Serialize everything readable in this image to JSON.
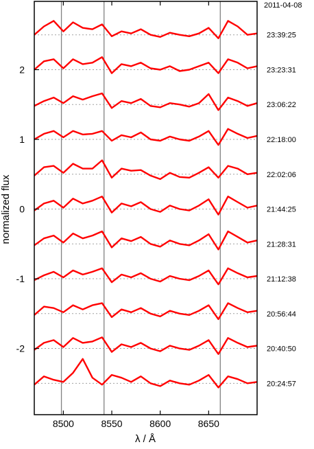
{
  "chart_data": {
    "type": "line",
    "title": "",
    "date_label": "2011-04-08",
    "xlabel": "λ / Å",
    "ylabel": "normalized flux",
    "xlim": [
      8470,
      8700
    ],
    "ylim": [
      -2.95,
      2.98
    ],
    "x_ticks": [
      8500,
      8550,
      8600,
      8650
    ],
    "y_ticks": [
      2,
      1,
      0,
      -1,
      -2
    ],
    "reference_lines_x": [
      8498,
      8542,
      8662
    ],
    "grid": false,
    "series_color": "#ff0000",
    "reference_line_color": "#808080",
    "baseline_color": "#a0a0a0",
    "series": [
      {
        "time": "23:39:25",
        "baseline": 2.5,
        "x": [
          8470,
          8480,
          8490,
          8500,
          8510,
          8520,
          8530,
          8540,
          8550,
          8560,
          8570,
          8580,
          8590,
          8600,
          8610,
          8620,
          8630,
          8640,
          8650,
          8660,
          8670,
          8680,
          8690,
          8700
        ],
        "y": [
          2.5,
          2.62,
          2.7,
          2.55,
          2.68,
          2.6,
          2.58,
          2.65,
          2.48,
          2.55,
          2.52,
          2.58,
          2.5,
          2.47,
          2.53,
          2.5,
          2.48,
          2.52,
          2.6,
          2.45,
          2.7,
          2.62,
          2.5,
          2.52
        ]
      },
      {
        "time": "23:23:31",
        "baseline": 2.0,
        "x": [
          8470,
          8480,
          8490,
          8500,
          8510,
          8520,
          8530,
          8540,
          8550,
          8560,
          8570,
          8580,
          8590,
          8600,
          8610,
          8620,
          8630,
          8640,
          8650,
          8660,
          8670,
          8680,
          8690,
          8700
        ],
        "y": [
          2.0,
          2.12,
          2.15,
          2.02,
          2.15,
          2.08,
          2.1,
          2.18,
          1.95,
          2.08,
          2.05,
          2.1,
          2.02,
          2.0,
          2.05,
          1.98,
          2.0,
          2.05,
          2.1,
          1.95,
          2.15,
          2.1,
          2.02,
          2.05
        ]
      },
      {
        "time": "23:06:22",
        "baseline": 1.5,
        "x": [
          8470,
          8480,
          8490,
          8500,
          8510,
          8520,
          8530,
          8540,
          8550,
          8560,
          8570,
          8580,
          8590,
          8600,
          8610,
          8620,
          8630,
          8640,
          8650,
          8660,
          8670,
          8680,
          8690,
          8700
        ],
        "y": [
          1.48,
          1.55,
          1.6,
          1.52,
          1.62,
          1.57,
          1.62,
          1.66,
          1.45,
          1.55,
          1.52,
          1.58,
          1.48,
          1.46,
          1.52,
          1.5,
          1.47,
          1.52,
          1.65,
          1.42,
          1.6,
          1.55,
          1.48,
          1.52
        ]
      },
      {
        "time": "22:18:00",
        "baseline": 1.0,
        "x": [
          8470,
          8480,
          8490,
          8500,
          8510,
          8520,
          8530,
          8540,
          8550,
          8560,
          8570,
          8580,
          8590,
          8600,
          8610,
          8620,
          8630,
          8640,
          8650,
          8660,
          8670,
          8680,
          8690,
          8700
        ],
        "y": [
          1.0,
          1.08,
          1.12,
          1.03,
          1.12,
          1.07,
          1.08,
          1.12,
          0.98,
          1.06,
          1.03,
          1.1,
          1.0,
          0.98,
          1.04,
          1.0,
          0.98,
          1.04,
          1.12,
          0.92,
          1.15,
          1.08,
          1.02,
          1.05
        ]
      },
      {
        "time": "22:02:06",
        "baseline": 0.5,
        "x": [
          8470,
          8480,
          8490,
          8500,
          8510,
          8520,
          8530,
          8540,
          8550,
          8560,
          8570,
          8580,
          8590,
          8600,
          8610,
          8620,
          8630,
          8640,
          8650,
          8660,
          8670,
          8680,
          8690,
          8700
        ],
        "y": [
          0.48,
          0.6,
          0.62,
          0.52,
          0.65,
          0.58,
          0.58,
          0.7,
          0.45,
          0.58,
          0.55,
          0.56,
          0.48,
          0.43,
          0.52,
          0.46,
          0.45,
          0.52,
          0.6,
          0.45,
          0.62,
          0.58,
          0.5,
          0.52
        ]
      },
      {
        "time": "21:44:25",
        "baseline": 0.0,
        "x": [
          8470,
          8480,
          8490,
          8500,
          8510,
          8520,
          8530,
          8540,
          8550,
          8560,
          8570,
          8580,
          8590,
          8600,
          8610,
          8620,
          8630,
          8640,
          8650,
          8660,
          8670,
          8680,
          8690,
          8700
        ],
        "y": [
          -0.02,
          0.08,
          0.12,
          0.02,
          0.15,
          0.08,
          0.12,
          0.18,
          -0.05,
          0.08,
          0.04,
          0.1,
          0.0,
          -0.04,
          0.05,
          0.0,
          -0.02,
          0.05,
          0.14,
          -0.08,
          0.18,
          0.1,
          0.02,
          0.05
        ]
      },
      {
        "time": "21:28:31",
        "baseline": -0.5,
        "x": [
          8470,
          8480,
          8490,
          8500,
          8510,
          8520,
          8530,
          8540,
          8550,
          8560,
          8570,
          8580,
          8590,
          8600,
          8610,
          8620,
          8630,
          8640,
          8650,
          8660,
          8670,
          8680,
          8690,
          8700
        ],
        "y": [
          -0.52,
          -0.42,
          -0.38,
          -0.48,
          -0.35,
          -0.42,
          -0.38,
          -0.32,
          -0.55,
          -0.42,
          -0.46,
          -0.4,
          -0.5,
          -0.54,
          -0.45,
          -0.5,
          -0.52,
          -0.45,
          -0.36,
          -0.58,
          -0.32,
          -0.4,
          -0.48,
          -0.45
        ]
      },
      {
        "time": "21:12:38",
        "baseline": -1.0,
        "x": [
          8470,
          8480,
          8490,
          8500,
          8510,
          8520,
          8530,
          8540,
          8550,
          8560,
          8570,
          8580,
          8590,
          8600,
          8610,
          8620,
          8630,
          8640,
          8650,
          8660,
          8670,
          8680,
          8690,
          8700
        ],
        "y": [
          -1.02,
          -0.95,
          -0.9,
          -0.98,
          -0.88,
          -0.94,
          -0.9,
          -0.85,
          -1.05,
          -0.94,
          -0.98,
          -0.92,
          -1.0,
          -1.04,
          -0.96,
          -1.0,
          -1.02,
          -0.96,
          -0.88,
          -1.08,
          -0.85,
          -0.92,
          -0.98,
          -0.96
        ]
      },
      {
        "time": "20:56:44",
        "baseline": -1.5,
        "x": [
          8470,
          8480,
          8490,
          8500,
          8510,
          8520,
          8530,
          8540,
          8550,
          8560,
          8570,
          8580,
          8590,
          8600,
          8610,
          8620,
          8630,
          8640,
          8650,
          8660,
          8670,
          8680,
          8690,
          8700
        ],
        "y": [
          -1.52,
          -1.4,
          -1.42,
          -1.48,
          -1.38,
          -1.44,
          -1.38,
          -1.35,
          -1.55,
          -1.44,
          -1.48,
          -1.42,
          -1.5,
          -1.54,
          -1.46,
          -1.5,
          -1.52,
          -1.46,
          -1.38,
          -1.58,
          -1.35,
          -1.42,
          -1.48,
          -1.46
        ]
      },
      {
        "time": "20:40:50",
        "baseline": -2.0,
        "x": [
          8470,
          8480,
          8490,
          8500,
          8510,
          8520,
          8530,
          8540,
          8550,
          8560,
          8570,
          8580,
          8590,
          8600,
          8610,
          8620,
          8630,
          8640,
          8650,
          8660,
          8670,
          8680,
          8690,
          8700
        ],
        "y": [
          -2.02,
          -1.92,
          -1.88,
          -1.98,
          -1.85,
          -1.92,
          -1.9,
          -1.84,
          -2.05,
          -1.94,
          -1.98,
          -1.92,
          -2.0,
          -2.04,
          -1.96,
          -2.0,
          -2.02,
          -1.96,
          -1.88,
          -2.08,
          -1.85,
          -1.92,
          -1.98,
          -1.96
        ]
      },
      {
        "time": "20:24:57",
        "baseline": -2.5,
        "x": [
          8470,
          8480,
          8490,
          8500,
          8510,
          8520,
          8530,
          8540,
          8550,
          8560,
          8570,
          8580,
          8590,
          8600,
          8610,
          8620,
          8630,
          8640,
          8650,
          8660,
          8670,
          8680,
          8690,
          8700
        ],
        "y": [
          -2.52,
          -2.4,
          -2.45,
          -2.48,
          -2.35,
          -2.15,
          -2.42,
          -2.52,
          -2.38,
          -2.42,
          -2.48,
          -2.4,
          -2.5,
          -2.54,
          -2.46,
          -2.5,
          -2.52,
          -2.46,
          -2.38,
          -2.56,
          -2.4,
          -2.44,
          -2.5,
          -2.48
        ]
      }
    ]
  }
}
